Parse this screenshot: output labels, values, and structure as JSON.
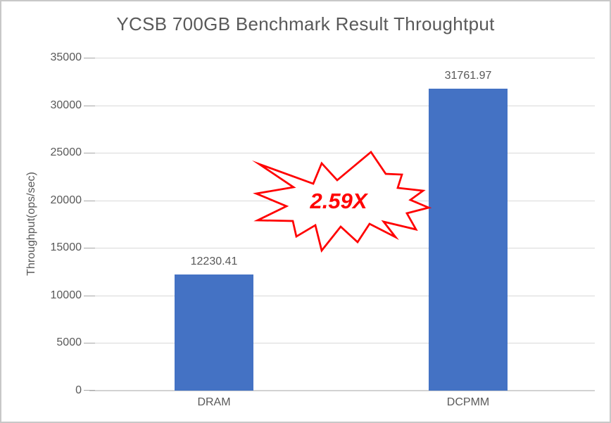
{
  "window": {
    "background_color": "#ffffff",
    "border_color": "#c8c8c8"
  },
  "chart_data": {
    "type": "bar",
    "title": "YCSB 700GB Benchmark Result Throughtput",
    "xlabel": "",
    "ylabel": "Throughput(ops/sec)",
    "categories": [
      "DRAM",
      "DCPMM"
    ],
    "values": [
      12230.41,
      31761.97
    ],
    "value_labels": [
      "12230.41",
      "31761.97"
    ],
    "ylim": [
      0,
      35000
    ],
    "y_tick_step": 5000,
    "y_tick_labels": [
      "35000",
      "30000",
      "25000",
      "20000",
      "15000",
      "10000",
      "5000",
      "0"
    ],
    "grid": true,
    "legend": false,
    "bar_color": "#4472c4",
    "gridline_color": "#d9d9d9",
    "text_color": "#595959",
    "annotation": {
      "text": "2.59X",
      "shape": "explosion-burst",
      "color": "#ff0000",
      "fill": "#ffffff"
    }
  }
}
